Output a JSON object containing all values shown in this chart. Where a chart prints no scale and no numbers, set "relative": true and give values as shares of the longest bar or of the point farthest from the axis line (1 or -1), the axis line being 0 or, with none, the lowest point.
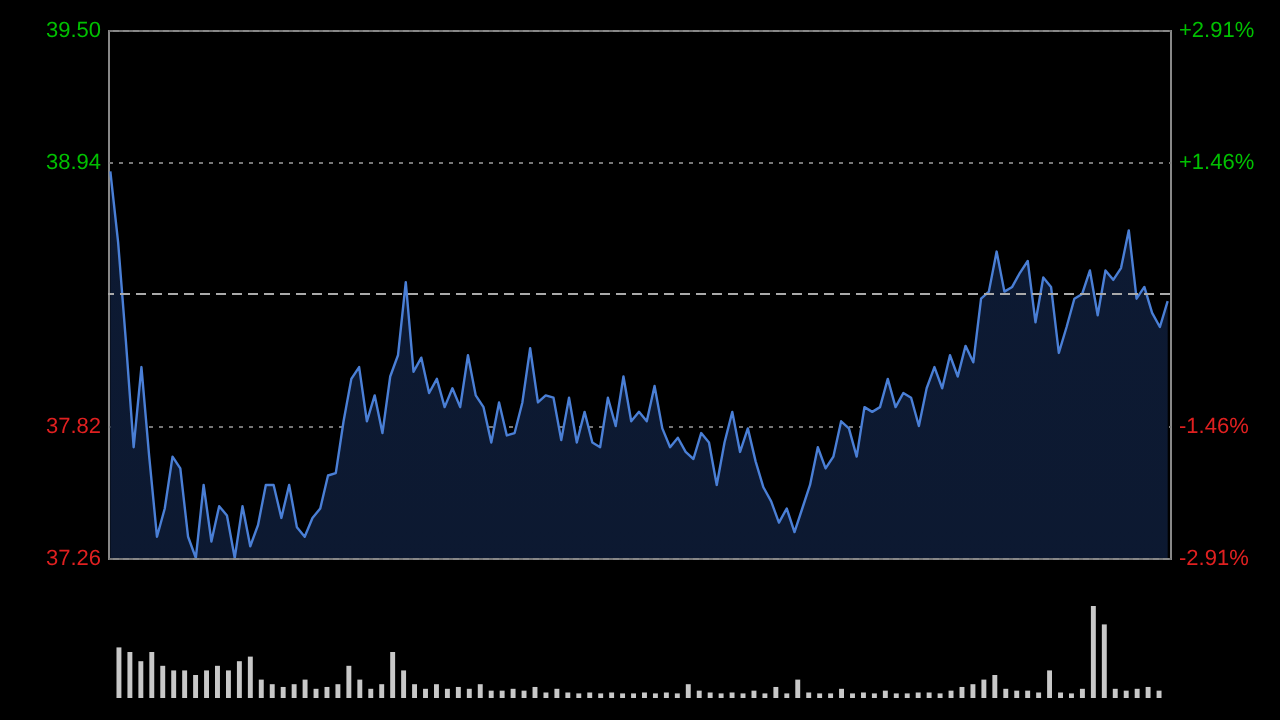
{
  "chart_data": [
    {
      "type": "area",
      "categories": [
        null,
        null,
        null,
        null,
        null,
        null,
        null,
        null,
        null,
        null,
        null,
        null,
        null,
        null,
        null,
        null,
        null,
        null,
        null,
        null,
        null,
        null,
        null,
        null,
        null,
        null,
        null,
        null,
        null,
        null,
        null,
        null,
        null,
        null,
        null,
        null,
        null,
        null,
        null,
        null,
        null,
        null,
        null,
        null,
        null,
        null,
        null,
        null,
        null,
        null,
        null,
        null,
        null,
        null,
        null,
        null,
        null,
        null,
        null,
        null,
        null,
        null,
        null,
        null,
        null,
        null,
        null,
        null,
        null,
        null,
        null,
        null,
        null,
        null,
        null,
        null,
        null,
        null,
        null,
        null,
        null,
        null,
        null,
        null,
        null,
        null,
        null,
        null,
        null,
        null,
        null,
        null,
        null,
        null,
        null,
        null,
        null,
        null,
        null,
        null,
        null,
        null,
        null,
        null,
        null,
        null,
        null,
        null,
        null,
        null,
        null,
        null,
        null,
        null,
        null,
        null,
        null,
        null,
        null,
        null,
        null,
        null,
        null,
        null,
        null,
        null,
        null,
        null,
        null,
        null,
        null,
        null,
        null,
        null,
        null,
        null,
        null
      ],
      "series": [
        {
          "color": "#4a7fd6",
          "values": [
            38.9,
            38.6,
            38.18,
            37.73,
            38.07,
            37.69,
            37.35,
            37.47,
            37.69,
            37.64,
            37.35,
            37.26,
            37.57,
            37.33,
            37.48,
            37.44,
            37.26,
            37.48,
            37.31,
            37.4,
            37.57,
            37.57,
            37.43,
            37.57,
            37.39,
            37.35,
            37.43,
            37.47,
            37.61,
            37.62,
            37.84,
            38.02,
            38.07,
            37.84,
            37.95,
            37.79,
            38.03,
            38.12,
            38.43,
            38.05,
            38.11,
            37.96,
            38.02,
            37.9,
            37.98,
            37.9,
            38.12,
            37.95,
            37.9,
            37.75,
            37.92,
            37.78,
            37.79,
            37.92,
            38.15,
            37.92,
            37.95,
            37.94,
            37.76,
            37.94,
            37.75,
            37.88,
            37.75,
            37.73,
            37.94,
            37.82,
            38.03,
            37.84,
            37.88,
            37.84,
            37.99,
            37.81,
            37.73,
            37.77,
            37.71,
            37.68,
            37.79,
            37.75,
            37.57,
            37.75,
            37.88,
            37.71,
            37.81,
            37.67,
            37.56,
            37.5,
            37.41,
            37.47,
            37.37,
            37.47,
            37.57,
            37.73,
            37.64,
            37.69,
            37.84,
            37.81,
            37.69,
            37.9,
            37.88,
            37.9,
            38.02,
            37.9,
            37.96,
            37.94,
            37.82,
            37.98,
            38.07,
            37.98,
            38.12,
            38.03,
            38.16,
            38.09,
            38.36,
            38.39,
            38.56,
            38.39,
            38.41,
            38.47,
            38.52,
            38.26,
            38.45,
            38.41,
            38.13,
            38.24,
            38.36,
            38.38,
            38.48,
            38.29,
            38.48,
            38.44,
            38.49,
            38.65,
            38.36,
            38.41,
            38.3,
            38.24,
            38.35
          ]
        }
      ],
      "ylim": [
        37.26,
        39.5
      ],
      "yticks": [
        37.26,
        37.82,
        38.94,
        {
          "value": 39.5,
          "label": "39.50"
        }
      ],
      "y2lim": [
        -2.91,
        2.91
      ],
      "y2ticks": [
        {
          "value": -2.91,
          "label": "-2.91%"
        },
        {
          "value": -1.46,
          "label": "-1.46%"
        },
        {
          "value": 1.46,
          "label": "+1.46%"
        },
        {
          "value": 2.91,
          "label": "+2.91%"
        }
      ],
      "ref_lines": [
        {
          "axis": "y",
          "value": 38.38,
          "color": "#aaaaaa",
          "line_style": "dashed"
        }
      ],
      "tick_labels": "y",
      "grid": "y"
    },
    {
      "type": "bar",
      "relative": true,
      "categories": [
        null,
        null,
        null,
        null,
        null,
        null,
        null,
        null,
        null,
        null,
        null,
        null,
        null,
        null,
        null,
        null,
        null,
        null,
        null,
        null,
        null,
        null,
        null,
        null,
        null,
        null,
        null,
        null,
        null,
        null,
        null,
        null,
        null,
        null,
        null,
        null,
        null,
        null,
        null,
        null,
        null,
        null,
        null,
        null,
        null,
        null,
        null,
        null,
        null,
        null,
        null,
        null,
        null,
        null,
        null,
        null,
        null,
        null,
        null,
        null,
        null,
        null,
        null,
        null,
        null,
        null,
        null,
        null,
        null,
        null,
        null,
        null,
        null,
        null,
        null,
        null,
        null,
        null,
        null,
        null,
        null,
        null,
        null,
        null,
        null,
        null,
        null,
        null,
        null,
        null,
        null,
        null,
        null,
        null,
        null,
        null
      ],
      "series": [
        {
          "color": "#c8c8c8",
          "values": [
            0.55,
            0.5,
            0.4,
            0.5,
            0.35,
            0.3,
            0.3,
            0.25,
            0.3,
            0.35,
            0.3,
            0.4,
            0.45,
            0.2,
            0.15,
            0.12,
            0.15,
            0.2,
            0.1,
            0.12,
            0.15,
            0.35,
            0.2,
            0.1,
            0.15,
            0.5,
            0.3,
            0.15,
            0.1,
            0.15,
            0.1,
            0.12,
            0.1,
            0.15,
            0.08,
            0.08,
            0.1,
            0.08,
            0.12,
            0.06,
            0.1,
            0.06,
            0.05,
            0.06,
            0.05,
            0.06,
            0.05,
            0.05,
            0.06,
            0.05,
            0.06,
            0.05,
            0.15,
            0.08,
            0.06,
            0.05,
            0.06,
            0.05,
            0.08,
            0.05,
            0.12,
            0.05,
            0.2,
            0.06,
            0.05,
            0.05,
            0.1,
            0.05,
            0.06,
            0.05,
            0.08,
            0.05,
            0.05,
            0.06,
            0.06,
            0.05,
            0.08,
            0.12,
            0.15,
            0.2,
            0.25,
            0.1,
            0.08,
            0.08,
            0.06,
            0.3,
            0.06,
            0.05,
            0.1,
            1.0,
            0.8,
            0.1,
            0.08,
            0.1,
            0.12,
            0.08
          ]
        }
      ],
      "tick_labels": false
    }
  ]
}
